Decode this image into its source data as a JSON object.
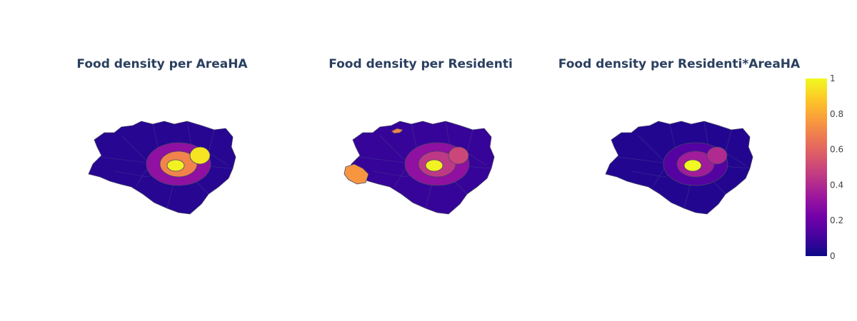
{
  "figure": {
    "panels": [
      {
        "title": "Food density per AreaHA"
      },
      {
        "title": "Food density per Residenti"
      },
      {
        "title": "Food density per Residenti*AreaHA"
      }
    ],
    "colorbar": {
      "ticks": [
        "0",
        "0.2",
        "0.4",
        "0.6",
        "0.8",
        "1"
      ],
      "stops": [
        "#0d0887",
        "#46039f",
        "#7201a8",
        "#9c179e",
        "#bd3786",
        "#d8576b",
        "#ed7953",
        "#fb9f3a",
        "#fdca26",
        "#f0f921"
      ]
    }
  },
  "map_regions": {
    "region_names": [
      "outer-ring",
      "middle-ring",
      "inner-ring",
      "center-west",
      "center-east",
      "north-outlier",
      "west-outlier"
    ],
    "panel_values": [
      {
        "outer-ring": 0.05,
        "middle-ring": 0.3,
        "inner-ring": 0.7,
        "center-west": 0.98,
        "center-east": 0.95,
        "north-outlier": 0.05,
        "west-outlier": 0.05
      },
      {
        "outer-ring": 0.08,
        "middle-ring": 0.3,
        "inner-ring": 0.45,
        "center-west": 0.98,
        "center-east": 0.5,
        "north-outlier": 0.7,
        "west-outlier": 0.75
      },
      {
        "outer-ring": 0.04,
        "middle-ring": 0.15,
        "inner-ring": 0.35,
        "center-west": 1.0,
        "center-east": 0.4,
        "north-outlier": 0.04,
        "west-outlier": 0.04
      }
    ]
  }
}
